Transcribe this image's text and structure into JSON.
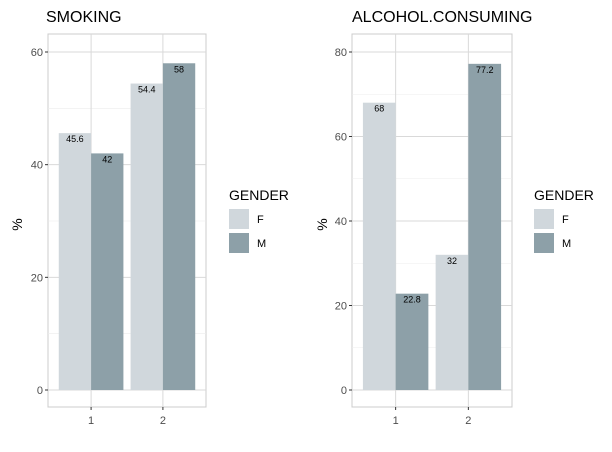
{
  "colors": {
    "F": "#d0d7dc",
    "M": "#8da0a8",
    "grid": "#d9d9d9",
    "panel_border": "#cccccc"
  },
  "chart_data": [
    {
      "type": "bar",
      "title": "SMOKING",
      "xlabel": "",
      "ylabel": "%",
      "categories": [
        "1",
        "2"
      ],
      "series": [
        {
          "name": "F",
          "values": [
            45.6,
            54.4
          ]
        },
        {
          "name": "M",
          "values": [
            42,
            58
          ]
        }
      ],
      "value_labels": [
        [
          "45.6",
          "54.4"
        ],
        [
          "42",
          "58"
        ]
      ],
      "ylim": [
        0,
        60
      ],
      "yticks": [
        0,
        20,
        40,
        60
      ],
      "grid": true,
      "legend": {
        "title": "GENDER",
        "placement": "right",
        "entries": [
          "F",
          "M"
        ]
      }
    },
    {
      "type": "bar",
      "title": "ALCOHOL.CONSUMING",
      "xlabel": "",
      "ylabel": "%",
      "categories": [
        "1",
        "2"
      ],
      "series": [
        {
          "name": "F",
          "values": [
            68,
            32
          ]
        },
        {
          "name": "M",
          "values": [
            22.8,
            77.2
          ]
        }
      ],
      "value_labels": [
        [
          "68",
          "32"
        ],
        [
          "22.8",
          "77.2"
        ]
      ],
      "ylim": [
        0,
        80
      ],
      "yticks": [
        0,
        20,
        40,
        60,
        80
      ],
      "grid": true,
      "legend": {
        "title": "GENDER",
        "placement": "right",
        "entries": [
          "F",
          "M"
        ]
      }
    }
  ]
}
